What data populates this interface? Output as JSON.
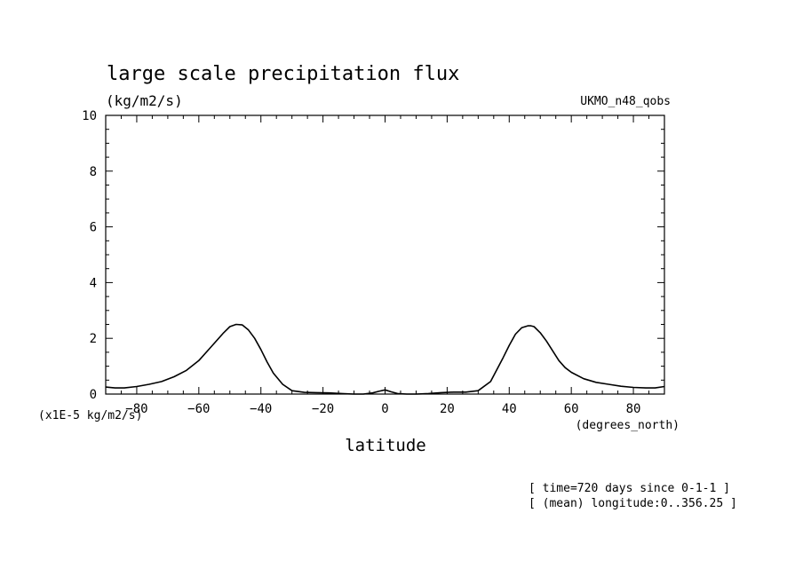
{
  "chart_data": {
    "type": "line",
    "title": "large scale precipitation flux",
    "units": "(kg/m2/s)",
    "dataset": "UKMO_n48_qobs",
    "xlabel": "latitude",
    "xunits": "(degrees_north)",
    "yscale_note": "(x1E-5 kg/m2/s)",
    "xlim": [
      -90,
      90
    ],
    "ylim": [
      0,
      10
    ],
    "xticks": [
      -80,
      -60,
      -40,
      -20,
      0,
      20,
      40,
      60,
      80
    ],
    "yticks": [
      0,
      2,
      4,
      6,
      8,
      10
    ],
    "grid": false,
    "annotations": [
      "[ time=720 days since 0-1-1 ]",
      "[ (mean) longitude:0..356.25 ]"
    ],
    "series": [
      {
        "color": "#000000",
        "x": [
          -90,
          -87,
          -84,
          -80,
          -76,
          -72,
          -68,
          -64,
          -60,
          -56,
          -52,
          -50,
          -48,
          -46,
          -44,
          -42,
          -40,
          -38,
          -36,
          -33,
          -30,
          -26,
          -22,
          -18,
          -14,
          -10,
          -7,
          -4,
          -2,
          0,
          2,
          4,
          7,
          10,
          14,
          18,
          22,
          26,
          30,
          34,
          38,
          40,
          42,
          44,
          46,
          47,
          48,
          50,
          52,
          54,
          56,
          58,
          60,
          64,
          68,
          72,
          76,
          80,
          84,
          87,
          90
        ],
        "y": [
          0.25,
          0.22,
          0.22,
          0.27,
          0.35,
          0.45,
          0.62,
          0.85,
          1.2,
          1.7,
          2.2,
          2.42,
          2.5,
          2.48,
          2.3,
          2.0,
          1.6,
          1.15,
          0.75,
          0.35,
          0.12,
          0.06,
          0.05,
          0.04,
          0.02,
          0.0,
          0.0,
          0.04,
          0.1,
          0.15,
          0.08,
          0.02,
          0.0,
          0.0,
          0.02,
          0.05,
          0.07,
          0.07,
          0.12,
          0.45,
          1.3,
          1.75,
          2.15,
          2.38,
          2.45,
          2.45,
          2.42,
          2.2,
          1.9,
          1.55,
          1.2,
          0.95,
          0.78,
          0.55,
          0.42,
          0.35,
          0.28,
          0.24,
          0.22,
          0.22,
          0.27
        ]
      }
    ]
  }
}
